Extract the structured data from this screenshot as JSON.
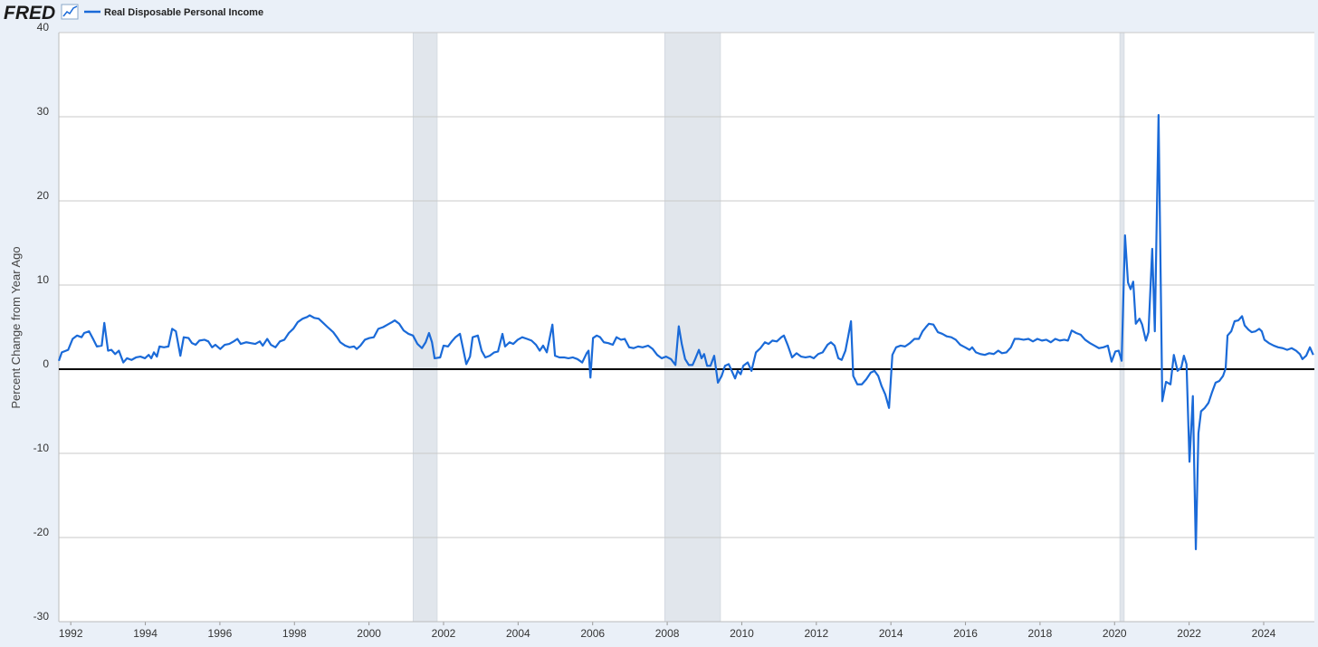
{
  "header": {
    "logo": "FRED"
  },
  "chart_data": {
    "type": "line",
    "y_label": "Percent Change from Year Ago",
    "x": [
      1991.68,
      1991.76,
      1991.93,
      1992.05,
      1992.17,
      1992.29,
      1992.36,
      1992.49,
      1992.61,
      1992.7,
      1992.83,
      1992.9,
      1993.0,
      1993.09,
      1993.19,
      1993.29,
      1993.41,
      1993.51,
      1993.63,
      1993.75,
      1993.87,
      1993.99,
      1994.09,
      1994.16,
      1994.23,
      1994.31,
      1994.38,
      1994.5,
      1994.62,
      1994.72,
      1994.82,
      1994.94,
      1995.03,
      1995.16,
      1995.25,
      1995.35,
      1995.45,
      1995.59,
      1995.69,
      1995.79,
      1995.88,
      1996.01,
      1996.13,
      1996.25,
      1996.37,
      1996.47,
      1996.56,
      1996.71,
      1996.83,
      1996.95,
      1997.07,
      1997.15,
      1997.27,
      1997.37,
      1997.49,
      1997.61,
      1997.73,
      1997.85,
      1997.97,
      1998.09,
      1998.22,
      1998.34,
      1998.41,
      1998.53,
      1998.65,
      1998.77,
      1998.89,
      1999.04,
      1999.14,
      1999.23,
      1999.36,
      1999.48,
      1999.6,
      1999.67,
      1999.77,
      1999.89,
      2000.01,
      2000.13,
      2000.25,
      2000.38,
      2000.5,
      2000.62,
      2000.69,
      2000.81,
      2000.93,
      2001.06,
      2001.18,
      2001.3,
      2001.42,
      2001.52,
      2001.61,
      2001.69,
      2001.76,
      2001.91,
      2002.0,
      2002.12,
      2002.22,
      2002.32,
      2002.44,
      2002.54,
      2002.61,
      2002.71,
      2002.78,
      2002.92,
      2003.02,
      2003.12,
      2003.24,
      2003.36,
      2003.46,
      2003.58,
      2003.65,
      2003.77,
      2003.87,
      2003.99,
      2004.11,
      2004.24,
      2004.36,
      2004.48,
      2004.58,
      2004.67,
      2004.77,
      2004.92,
      2004.99,
      2005.11,
      2005.23,
      2005.35,
      2005.47,
      2005.59,
      2005.72,
      2005.84,
      2005.89,
      2005.94,
      2006.01,
      2006.11,
      2006.2,
      2006.3,
      2006.42,
      2006.54,
      2006.64,
      2006.76,
      2006.86,
      2006.98,
      2007.1,
      2007.22,
      2007.34,
      2007.49,
      2007.61,
      2007.73,
      2007.85,
      2007.97,
      2008.1,
      2008.22,
      2008.31,
      2008.39,
      2008.48,
      2008.58,
      2008.68,
      2008.75,
      2008.85,
      2008.92,
      2008.99,
      2009.07,
      2009.16,
      2009.26,
      2009.36,
      2009.46,
      2009.55,
      2009.65,
      2009.75,
      2009.82,
      2009.89,
      2009.97,
      2010.04,
      2010.16,
      2010.26,
      2010.38,
      2010.5,
      2010.62,
      2010.72,
      2010.82,
      2010.94,
      2011.06,
      2011.13,
      2011.23,
      2011.35,
      2011.47,
      2011.59,
      2011.71,
      2011.83,
      2011.93,
      2012.05,
      2012.17,
      2012.3,
      2012.39,
      2012.49,
      2012.59,
      2012.68,
      2012.78,
      2012.85,
      2012.93,
      2012.99,
      2013.1,
      2013.22,
      2013.34,
      2013.46,
      2013.56,
      2013.66,
      2013.75,
      2013.85,
      2013.95,
      2014.04,
      2014.14,
      2014.26,
      2014.38,
      2014.51,
      2014.63,
      2014.75,
      2014.85,
      2014.94,
      2015.02,
      2015.14,
      2015.26,
      2015.38,
      2015.5,
      2015.62,
      2015.74,
      2015.86,
      2015.99,
      2016.11,
      2016.18,
      2016.28,
      2016.4,
      2016.52,
      2016.64,
      2016.76,
      2016.88,
      2016.98,
      2017.1,
      2017.22,
      2017.32,
      2017.44,
      2017.56,
      2017.69,
      2017.81,
      2017.93,
      2018.05,
      2018.17,
      2018.29,
      2018.41,
      2018.53,
      2018.65,
      2018.75,
      2018.85,
      2018.97,
      2019.09,
      2019.21,
      2019.34,
      2019.46,
      2019.58,
      2019.7,
      2019.82,
      2019.92,
      2020.02,
      2020.11,
      2020.19,
      2020.28,
      2020.36,
      2020.43,
      2020.5,
      2020.57,
      2020.67,
      2020.74,
      2020.84,
      2020.91,
      2021.01,
      2021.08,
      2021.18,
      2021.28,
      2021.38,
      2021.5,
      2021.59,
      2021.69,
      2021.79,
      2021.86,
      2021.93,
      2022.01,
      2022.1,
      2022.18,
      2022.25,
      2022.32,
      2022.42,
      2022.52,
      2022.61,
      2022.71,
      2022.81,
      2022.91,
      2022.98,
      2023.03,
      2023.13,
      2023.22,
      2023.32,
      2023.42,
      2023.49,
      2023.59,
      2023.68,
      2023.78,
      2023.88,
      2023.95,
      2024.02,
      2024.14,
      2024.27,
      2024.39,
      2024.51,
      2024.63,
      2024.75,
      2024.87,
      2024.97,
      2025.04,
      2025.14,
      2025.24,
      2025.33
    ],
    "series": [
      {
        "name": "Real Disposable Personal Income",
        "color": "#1a6ad8",
        "values": [
          1.0,
          2.0,
          2.3,
          3.6,
          4.0,
          3.8,
          4.3,
          4.5,
          3.5,
          2.7,
          2.8,
          5.5,
          2.2,
          2.3,
          1.8,
          2.2,
          0.8,
          1.3,
          1.1,
          1.4,
          1.5,
          1.3,
          1.7,
          1.3,
          2.0,
          1.5,
          2.7,
          2.6,
          2.7,
          4.8,
          4.5,
          1.6,
          3.8,
          3.7,
          3.1,
          2.9,
          3.4,
          3.5,
          3.3,
          2.6,
          2.9,
          2.4,
          2.9,
          3.0,
          3.3,
          3.6,
          3.0,
          3.2,
          3.1,
          3.0,
          3.3,
          2.8,
          3.6,
          2.9,
          2.6,
          3.3,
          3.5,
          4.3,
          4.8,
          5.6,
          6.0,
          6.2,
          6.4,
          6.1,
          6.0,
          5.5,
          5.0,
          4.4,
          3.8,
          3.2,
          2.8,
          2.6,
          2.7,
          2.4,
          2.8,
          3.5,
          3.7,
          3.8,
          4.8,
          5.0,
          5.3,
          5.6,
          5.8,
          5.4,
          4.6,
          4.2,
          4.0,
          3.0,
          2.5,
          3.2,
          4.3,
          3.2,
          1.3,
          1.4,
          2.8,
          2.7,
          3.3,
          3.8,
          4.2,
          2.1,
          0.6,
          1.5,
          3.8,
          4.0,
          2.2,
          1.4,
          1.6,
          2.0,
          2.1,
          4.2,
          2.7,
          3.2,
          3.0,
          3.5,
          3.8,
          3.6,
          3.4,
          2.9,
          2.2,
          2.8,
          2.0,
          5.3,
          1.6,
          1.4,
          1.4,
          1.3,
          1.4,
          1.2,
          0.8,
          1.9,
          2.2,
          -1.0,
          3.7,
          4.0,
          3.8,
          3.2,
          3.1,
          2.9,
          3.8,
          3.5,
          3.6,
          2.6,
          2.5,
          2.7,
          2.6,
          2.8,
          2.4,
          1.7,
          1.3,
          1.5,
          1.2,
          0.5,
          5.1,
          3.0,
          1.2,
          0.5,
          0.5,
          1.2,
          2.3,
          1.3,
          1.8,
          0.4,
          0.4,
          1.6,
          -1.6,
          -0.8,
          0.4,
          0.6,
          -0.4,
          -1.1,
          -0.2,
          -0.6,
          0.4,
          0.8,
          -0.2,
          2.0,
          2.5,
          3.2,
          3.0,
          3.4,
          3.3,
          3.8,
          4.0,
          2.9,
          1.4,
          1.9,
          1.5,
          1.4,
          1.5,
          1.3,
          1.8,
          2.0,
          2.9,
          3.2,
          2.8,
          1.3,
          1.1,
          2.2,
          3.8,
          5.7,
          -0.8,
          -1.8,
          -1.8,
          -1.2,
          -0.4,
          -0.2,
          -0.8,
          -2.0,
          -3.0,
          -4.6,
          1.7,
          2.6,
          2.8,
          2.7,
          3.1,
          3.6,
          3.6,
          4.5,
          5.0,
          5.4,
          5.3,
          4.4,
          4.2,
          3.9,
          3.8,
          3.5,
          2.9,
          2.6,
          2.3,
          2.6,
          2.0,
          1.8,
          1.7,
          1.9,
          1.8,
          2.2,
          1.9,
          2.0,
          2.6,
          3.6,
          3.6,
          3.5,
          3.6,
          3.3,
          3.6,
          3.4,
          3.5,
          3.2,
          3.6,
          3.4,
          3.5,
          3.4,
          4.6,
          4.3,
          4.1,
          3.5,
          3.1,
          2.8,
          2.5,
          2.6,
          2.8,
          0.9,
          2.1,
          2.2,
          1.0,
          15.9,
          10.3,
          9.5,
          10.4,
          5.4,
          6.0,
          5.3,
          3.4,
          4.4,
          14.3,
          4.5,
          30.2,
          -3.8,
          -1.5,
          -1.8,
          1.7,
          -0.2,
          0.2,
          1.6,
          0.6,
          -11.0,
          -3.2,
          -21.4,
          -7.6,
          -5.0,
          -4.6,
          -4.0,
          -2.8,
          -1.6,
          -1.4,
          -0.8,
          0.1,
          4.0,
          4.5,
          5.7,
          5.8,
          6.3,
          5.2,
          4.7,
          4.4,
          4.5,
          4.8,
          4.5,
          3.5,
          3.1,
          2.8,
          2.6,
          2.5,
          2.3,
          2.5,
          2.2,
          1.8,
          1.2,
          1.6,
          2.6,
          1.7
        ]
      }
    ],
    "xlim": [
      1991.68,
      2025.36
    ],
    "xticks": [
      1992,
      1994,
      1996,
      1998,
      2000,
      2002,
      2004,
      2006,
      2008,
      2010,
      2012,
      2014,
      2016,
      2018,
      2020,
      2022,
      2024
    ],
    "ylim": [
      -30,
      40
    ],
    "yticks": [
      -30,
      -20,
      -10,
      0,
      10,
      20,
      30,
      40
    ],
    "grid": true,
    "recessions": [
      [
        2001.18,
        2001.83
      ],
      [
        2007.93,
        2009.43
      ],
      [
        2020.14,
        2020.26
      ]
    ],
    "recession_color": "#e1e6ec"
  }
}
